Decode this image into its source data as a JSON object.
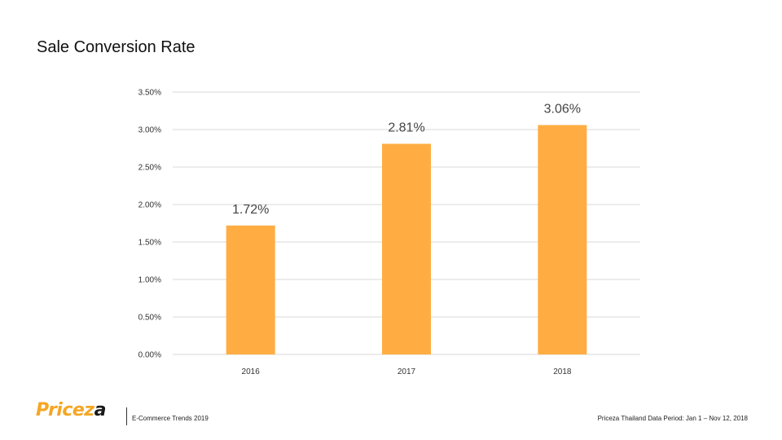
{
  "slide": {
    "title": "Sale Conversion Rate"
  },
  "footer": {
    "logo_main": "Pricez",
    "logo_end": "a",
    "left_text": "E-Commerce Trends 2019",
    "right_text": "Priceza Thailand Data Period: Jan 1 – Nov 12, 2018"
  },
  "colors": {
    "bar": "#ffad42",
    "gridline": "#d9d9d9",
    "logo_accent": "#f5a623"
  },
  "chart_data": {
    "type": "bar",
    "categories": [
      "2016",
      "2017",
      "2018"
    ],
    "values": [
      1.72,
      2.81,
      3.06
    ],
    "data_labels": [
      "1.72%",
      "2.81%",
      "3.06%"
    ],
    "yticks": [
      {
        "value": 0.0,
        "label": "0.00%"
      },
      {
        "value": 0.5,
        "label": "0.50%"
      },
      {
        "value": 1.0,
        "label": "1.00%"
      },
      {
        "value": 1.5,
        "label": "1.50%"
      },
      {
        "value": 2.0,
        "label": "2.00%"
      },
      {
        "value": 2.5,
        "label": "2.50%"
      },
      {
        "value": 3.0,
        "label": "3.00%"
      },
      {
        "value": 3.5,
        "label": "3.50%"
      }
    ],
    "ylim": [
      0,
      3.5
    ],
    "grid": true,
    "legend": "none",
    "title": "",
    "xlabel": "",
    "ylabel": ""
  }
}
